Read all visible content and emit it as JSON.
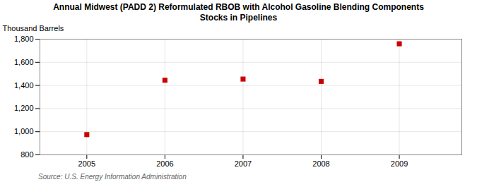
{
  "chart_data": {
    "type": "scatter",
    "title": "Annual Midwest (PADD 2) Reformulated RBOB with Alcohol Gasoline Blending Components\nStocks in Pipelines",
    "ylabel": "Thousand Barrels",
    "source": "Source: U.S. Energy Information Administration",
    "x": [
      2005,
      2006,
      2007,
      2008,
      2009
    ],
    "values": [
      975,
      1445,
      1455,
      1435,
      1760
    ],
    "color": "#cc0000",
    "marker": "square",
    "xlim": [
      2004.4,
      2009.8
    ],
    "xticks": [
      2005,
      2006,
      2007,
      2008,
      2009
    ],
    "ylim": [
      800,
      1800
    ],
    "yticks": [
      800,
      {
        "value": 1000,
        "label": "1,000"
      },
      {
        "value": 1200,
        "label": "1,200"
      },
      {
        "value": 1400,
        "label": "1,400"
      },
      {
        "value": 1600,
        "label": "1,600"
      },
      {
        "value": 1800,
        "label": "1,800"
      }
    ],
    "grid": true
  }
}
